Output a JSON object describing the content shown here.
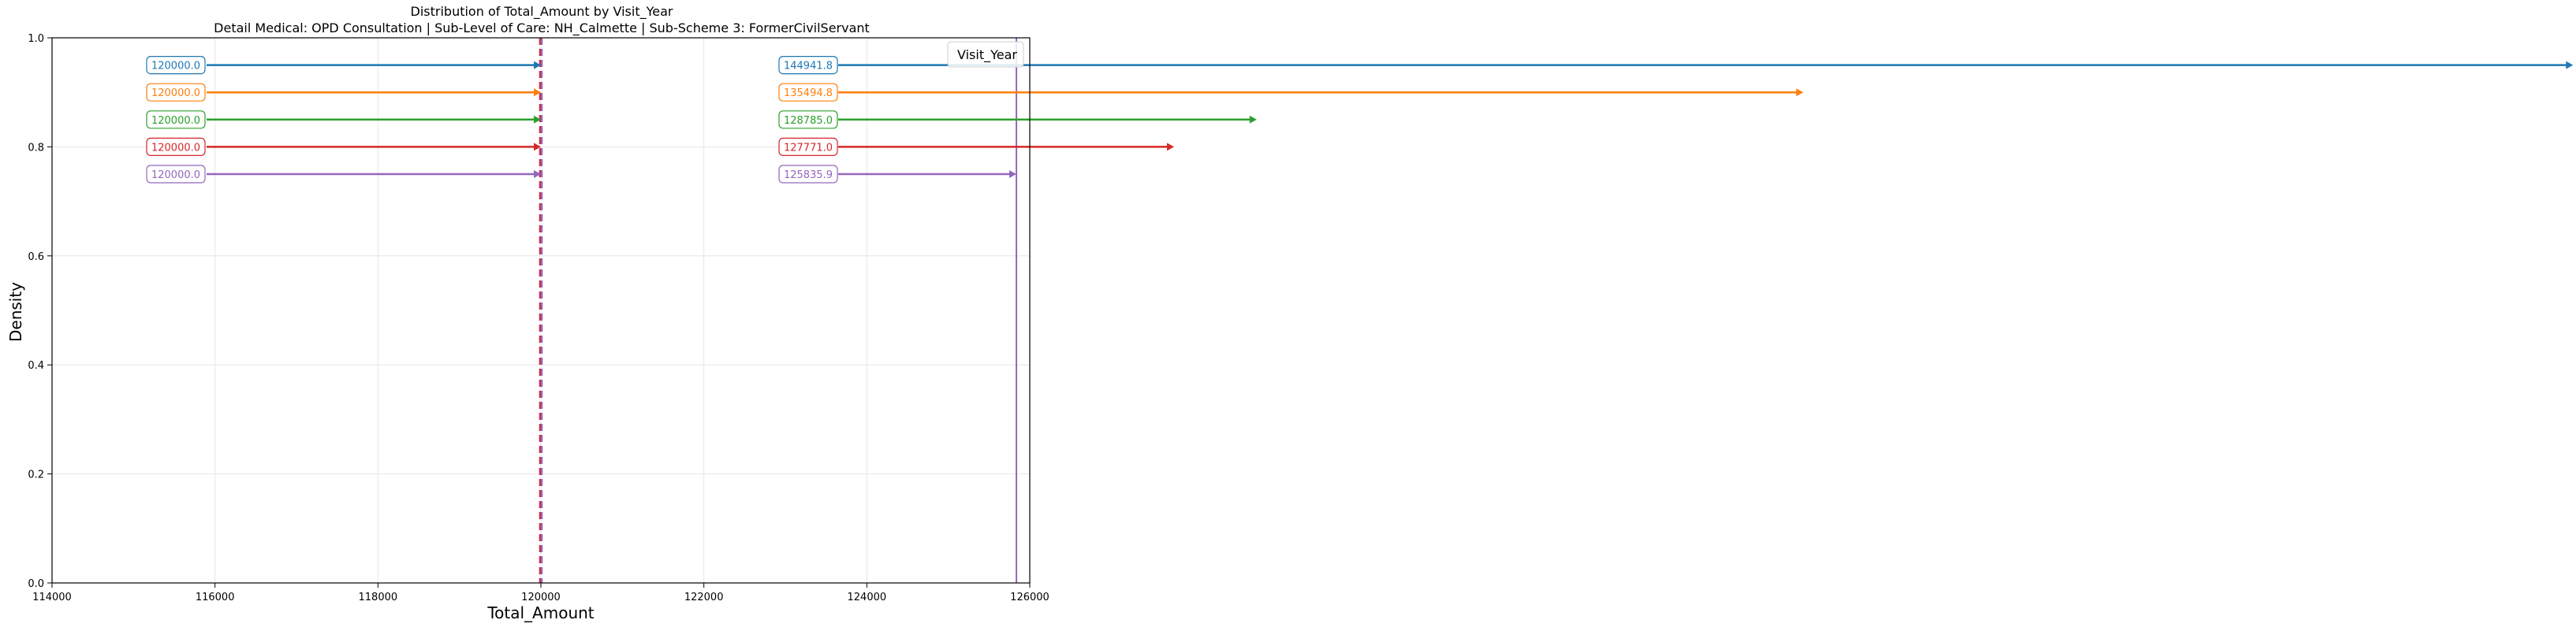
{
  "chart_data": {
    "type": "line",
    "title": "Distribution of Total_Amount by Visit_Year",
    "subtitle": "Detail Medical: OPD Consultation | Sub-Level of Care: NH_Calmette | Sub-Scheme 3: FormerCivilServant",
    "xlabel": "Total_Amount",
    "ylabel": "Density",
    "xlim": [
      114000,
      126000
    ],
    "ylim": [
      0.0,
      1.0
    ],
    "x_ticks": [
      "114000",
      "116000",
      "118000",
      "120000",
      "122000",
      "124000",
      "126000"
    ],
    "y_ticks": [
      "0.0",
      "0.2",
      "0.4",
      "0.6",
      "0.8",
      "1.0"
    ],
    "grid": true,
    "legend": {
      "title": "Visit_Year",
      "position": "top-right",
      "entries": []
    },
    "vertical_lines": [
      {
        "x": 120000,
        "color": "#d62728",
        "style": "dashed"
      },
      {
        "x": 120000,
        "color": "#9467bd",
        "style": "dashed"
      },
      {
        "x": 125835.9,
        "color": "#9467bd",
        "style": "solid"
      }
    ],
    "series": [
      {
        "color": "#1f77b4",
        "y": 0.95,
        "low": 120000.0,
        "high": 144941.8,
        "low_label": "120000.0",
        "high_label": "144941.8"
      },
      {
        "color": "#ff7f0e",
        "y": 0.9,
        "low": 120000.0,
        "high": 135494.8,
        "low_label": "120000.0",
        "high_label": "135494.8"
      },
      {
        "color": "#2ca02c",
        "y": 0.85,
        "low": 120000.0,
        "high": 128785.0,
        "low_label": "120000.0",
        "high_label": "128785.0"
      },
      {
        "color": "#d62728",
        "y": 0.8,
        "low": 120000.0,
        "high": 127771.0,
        "low_label": "120000.0",
        "high_label": "127771.0"
      },
      {
        "color": "#9467bd",
        "y": 0.75,
        "low": 120000.0,
        "high": 125835.9,
        "low_label": "120000.0",
        "high_label": "125835.9"
      }
    ]
  }
}
